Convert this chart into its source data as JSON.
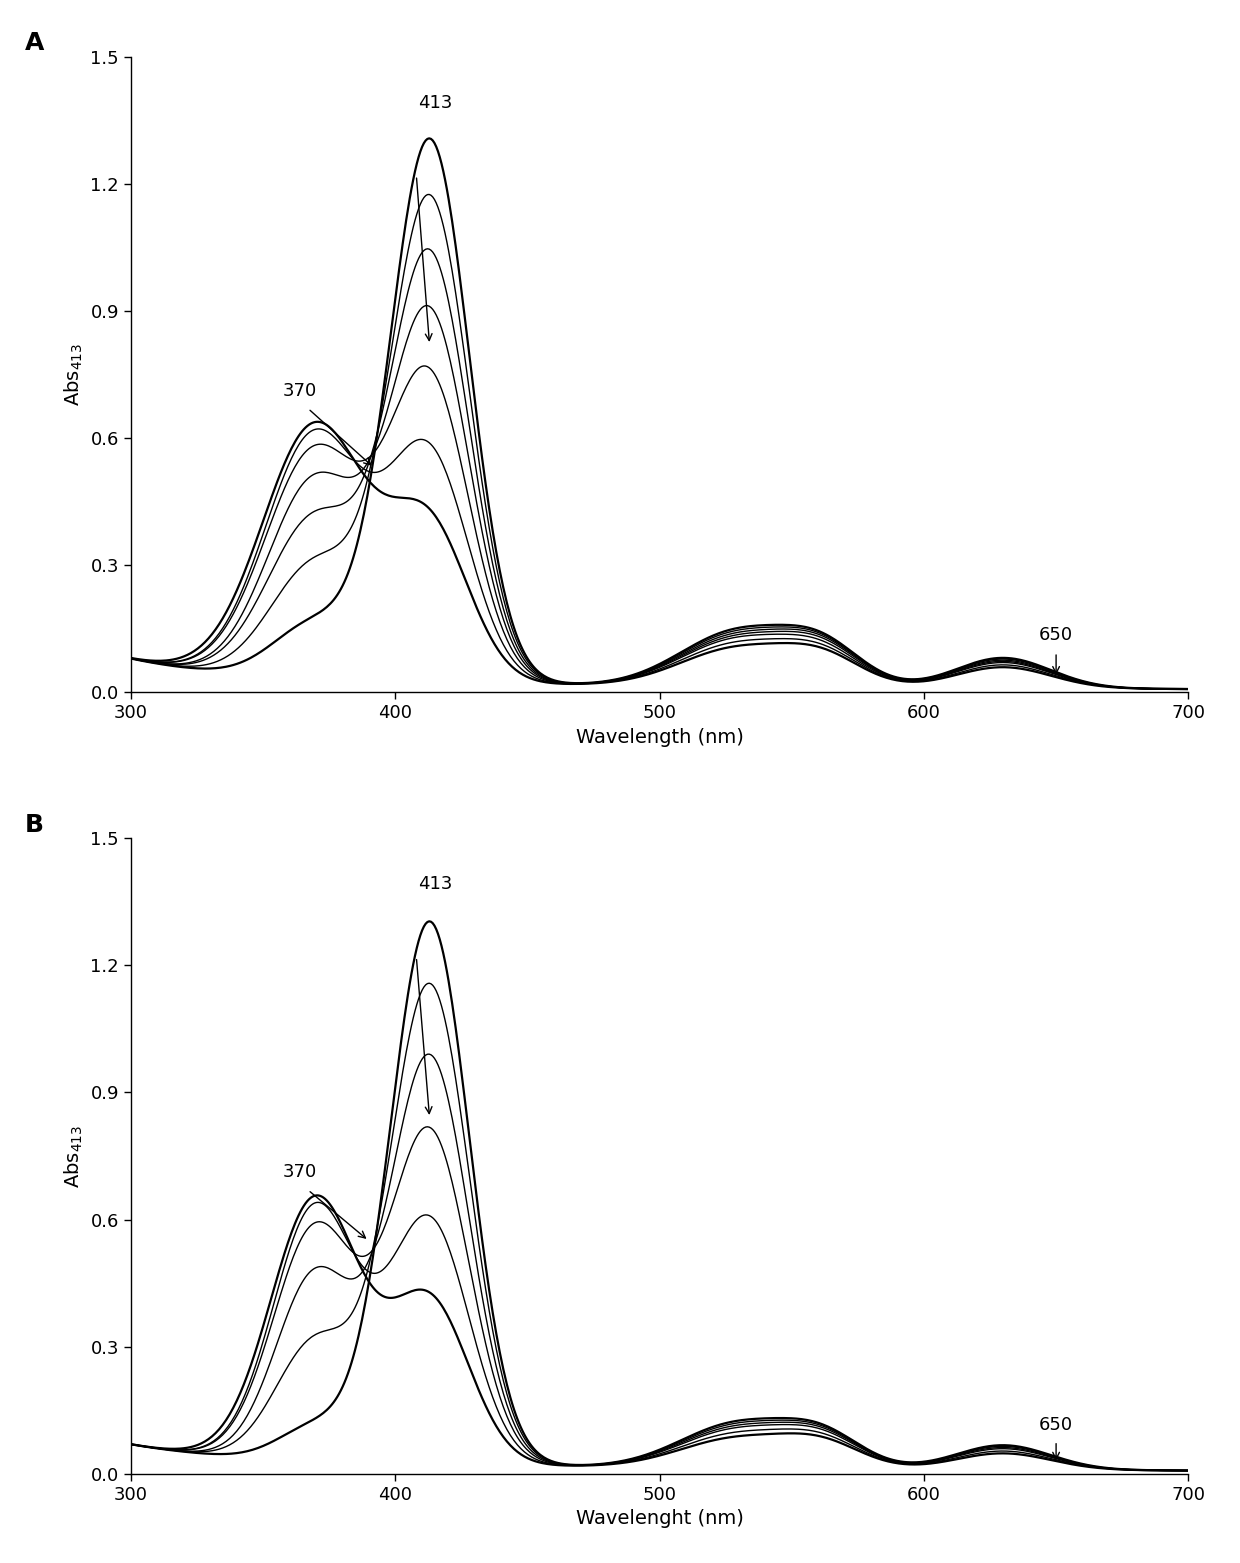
{
  "panel_A_label": "A",
  "panel_B_label": "B",
  "xlabel_A": "Wavelength (nm)",
  "xlabel_B": "Wavelenght (nm)",
  "ylabel": "Abs$_{413}$",
  "xlim": [
    300,
    700
  ],
  "ylim": [
    0.0,
    1.5
  ],
  "yticks": [
    0.0,
    0.3,
    0.6,
    0.9,
    1.2,
    1.5
  ],
  "xticks": [
    300,
    400,
    500,
    600,
    700
  ],
  "background_color": "#ffffff",
  "line_color": "#000000",
  "params_A": [
    [
      0.35,
      0.6,
      20,
      15,
      0.09,
      0.06,
      0.05
    ],
    [
      0.52,
      0.58,
      19,
      15,
      0.1,
      0.065,
      0.05
    ],
    [
      0.7,
      0.54,
      19,
      15,
      0.11,
      0.07,
      0.05
    ],
    [
      0.86,
      0.47,
      18,
      15,
      0.115,
      0.075,
      0.05
    ],
    [
      1.0,
      0.38,
      18,
      15,
      0.12,
      0.078,
      0.05
    ],
    [
      1.14,
      0.27,
      17,
      15,
      0.125,
      0.08,
      0.05
    ],
    [
      1.28,
      0.13,
      16,
      15,
      0.13,
      0.082,
      0.05
    ]
  ],
  "params_B": [
    [
      0.38,
      0.62,
      17,
      15,
      0.07,
      0.05,
      0.04
    ],
    [
      0.57,
      0.6,
      16,
      15,
      0.08,
      0.055,
      0.04
    ],
    [
      0.78,
      0.55,
      16,
      15,
      0.09,
      0.06,
      0.04
    ],
    [
      0.96,
      0.44,
      15,
      15,
      0.095,
      0.063,
      0.04
    ],
    [
      1.13,
      0.28,
      15,
      15,
      0.1,
      0.065,
      0.04
    ],
    [
      1.28,
      0.08,
      14,
      15,
      0.105,
      0.067,
      0.04
    ]
  ]
}
